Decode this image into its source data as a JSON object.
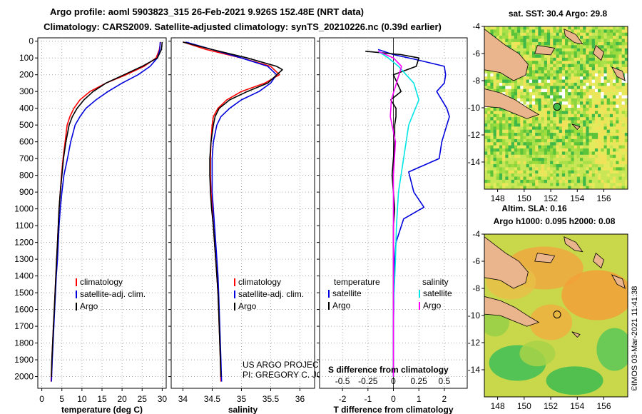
{
  "header": {
    "line1": "Argo profile: aoml 5903823_315 26-Feb-2021 9.926S 152.48E (NRT data)",
    "line2": "Climatology: CARS2009. Satellite-adjusted climatology: synTS_20210226.nc (0.39d earlier)"
  },
  "colors": {
    "climatology": "#ff0000",
    "satellite": "#0000dd",
    "argo": "#000000",
    "sat_salinity": "#00e5e5",
    "argo_salinity": "#ff00ff",
    "land": "#eab48c"
  },
  "chart_data": [
    {
      "type": "line",
      "id": "temperature",
      "xlabel": "temperature (deg C)",
      "xlim": [
        -1,
        31
      ],
      "ylim": [
        2070,
        -20
      ],
      "xticks": [
        0,
        5,
        10,
        15,
        20,
        25,
        30
      ],
      "xtick_labels": [
        "0",
        "5",
        "10",
        "15",
        "20",
        "25",
        "30"
      ],
      "yticks": [
        0,
        100,
        200,
        300,
        400,
        500,
        600,
        700,
        800,
        900,
        1000,
        1100,
        1200,
        1300,
        1400,
        1500,
        1600,
        1700,
        1800,
        1900,
        2000
      ],
      "ytick_labels": [
        "0",
        "100",
        "200",
        "300",
        "400",
        "500",
        "600",
        "700",
        "800",
        "900",
        "1000",
        "1100",
        "1200",
        "1300",
        "1400",
        "1500",
        "1600",
        "1700",
        "1800",
        "1900",
        "2000"
      ],
      "legend": [
        "climatology",
        "satellite-adj. clim.",
        "Argo"
      ],
      "legend_position": "lower-right",
      "series": [
        {
          "name": "climatology",
          "color": "#ff0000",
          "x": [
            29.6,
            29.3,
            28.5,
            25.5,
            21,
            16,
            12,
            9.5,
            8,
            7,
            6.3,
            5.8,
            5.3,
            4.9,
            4.6,
            4.3,
            4.1,
            3.9,
            3.7,
            3.5,
            3.3,
            3.1,
            2.9,
            2.7,
            2.5,
            2.3
          ],
          "y": [
            5,
            50,
            100,
            150,
            200,
            250,
            300,
            350,
            400,
            450,
            500,
            600,
            700,
            800,
            900,
            1000,
            1100,
            1200,
            1300,
            1400,
            1500,
            1600,
            1700,
            1800,
            1900,
            2030
          ]
        },
        {
          "name": "satellite-adj. clim.",
          "color": "#0000dd",
          "x": [
            29.5,
            29.4,
            28.8,
            27,
            24,
            20,
            16.5,
            13.5,
            11,
            9.5,
            8.3,
            7.2,
            6.4,
            5.5,
            5,
            4.6,
            4.3,
            4.1,
            3.9,
            3.6,
            3.4,
            3.2,
            3,
            2.8,
            2.6,
            2.4
          ],
          "y": [
            5,
            50,
            100,
            150,
            200,
            250,
            300,
            350,
            400,
            450,
            500,
            600,
            700,
            800,
            900,
            1000,
            1100,
            1200,
            1300,
            1400,
            1500,
            1600,
            1700,
            1800,
            1900,
            2030
          ]
        },
        {
          "name": "Argo",
          "color": "#000000",
          "x": [
            30,
            29.8,
            28.8,
            25,
            20.5,
            16,
            12.8,
            10.5,
            8.8,
            7.6,
            6.8,
            6,
            5.4,
            5,
            4.6,
            4.3,
            4.1,
            3.9,
            3.7,
            3.5,
            3.3,
            3.1,
            2.9,
            2.7,
            2.5,
            2.4
          ],
          "y": [
            5,
            50,
            100,
            150,
            200,
            250,
            300,
            350,
            400,
            450,
            500,
            600,
            700,
            800,
            900,
            1000,
            1100,
            1200,
            1300,
            1400,
            1500,
            1600,
            1700,
            1800,
            1900,
            2000
          ]
        }
      ]
    },
    {
      "type": "line",
      "id": "salinity",
      "xlabel": "salinity",
      "xlim": [
        33.8,
        36.25
      ],
      "ylim": [
        2070,
        -20
      ],
      "xticks": [
        34,
        34.5,
        35,
        35.5,
        36
      ],
      "xtick_labels": [
        "34",
        "34.5",
        "35",
        "35.5",
        "36"
      ],
      "legend": [
        "climatology",
        "satellite-adj. clim.",
        "Argo"
      ],
      "legend_position": "lower-right",
      "annotation": [
        "US ARGO PROJECT",
        "PI: GREGORY C. JOHNSON"
      ],
      "series": [
        {
          "name": "climatology",
          "color": "#ff0000",
          "x": [
            34.0,
            34.4,
            35.0,
            35.5,
            35.65,
            35.4,
            35.0,
            34.75,
            34.6,
            34.52,
            34.5,
            34.48,
            34.47,
            34.47,
            34.48,
            34.5,
            34.52,
            34.54,
            34.56,
            34.58,
            34.6,
            34.61,
            34.62,
            34.63,
            34.64,
            34.65
          ],
          "y": [
            5,
            50,
            100,
            150,
            200,
            250,
            300,
            350,
            400,
            450,
            500,
            600,
            700,
            800,
            900,
            1000,
            1100,
            1200,
            1300,
            1400,
            1500,
            1600,
            1700,
            1800,
            1900,
            2030
          ]
        },
        {
          "name": "satellite-adj. clim.",
          "color": "#0000dd",
          "x": [
            34.05,
            34.5,
            35.0,
            35.45,
            35.6,
            35.5,
            35.3,
            35.0,
            34.8,
            34.65,
            34.58,
            34.52,
            34.5,
            34.5,
            34.5,
            34.52,
            34.54,
            34.56,
            34.58,
            34.6,
            34.61,
            34.62,
            34.63,
            34.64,
            34.65,
            34.66
          ],
          "y": [
            5,
            50,
            100,
            150,
            200,
            250,
            300,
            350,
            400,
            450,
            500,
            600,
            700,
            800,
            900,
            1000,
            1100,
            1200,
            1300,
            1400,
            1500,
            1600,
            1700,
            1800,
            1900,
            2030
          ]
        },
        {
          "name": "Argo",
          "color": "#000000",
          "x": [
            34.0,
            34.5,
            35.1,
            35.6,
            35.7,
            35.45,
            35.1,
            34.8,
            34.62,
            34.55,
            34.52,
            34.48,
            34.46,
            34.46,
            34.47,
            34.49,
            34.52,
            34.54,
            34.56,
            34.58,
            34.6,
            34.61,
            34.62,
            34.63,
            34.64,
            34.65
          ],
          "y": [
            5,
            50,
            100,
            150,
            170,
            250,
            300,
            350,
            400,
            450,
            500,
            600,
            700,
            800,
            900,
            1000,
            1100,
            1200,
            1300,
            1400,
            1500,
            1600,
            1700,
            1800,
            1900,
            2000
          ]
        }
      ]
    },
    {
      "type": "line",
      "id": "difference",
      "xlabel": "T difference from climatology",
      "xlabel_top": "S difference from climatology",
      "xlim": [
        -2.9,
        2.9
      ],
      "ylim": [
        2070,
        -20
      ],
      "xticks": [
        -2,
        -1,
        0,
        1,
        2
      ],
      "xtick_labels": [
        "-2",
        "-1",
        "0",
        "1",
        "2"
      ],
      "xticks_salinity": [
        -0.5,
        -0.25,
        0,
        0.25,
        0.5
      ],
      "xtick_labels_salinity": [
        "-0.5",
        "-0.25",
        "0",
        "0.25",
        "0.5"
      ],
      "salinity_scale": 4,
      "legend_temperature_title": "temperature",
      "legend_salinity_title": "salinity",
      "legend_temperature": [
        "satellite",
        "Argo"
      ],
      "legend_salinity": [
        "satellite",
        "Argo"
      ],
      "series": [
        {
          "name": "temperature satellite",
          "color": "#0000dd",
          "x": [
            -0.6,
            0,
            0.9,
            2.0,
            2.05,
            2.0,
            1.7,
            1.9,
            2.1,
            2.2,
            2.1,
            1.9,
            1.8,
            0.6,
            0.8,
            1.2,
            0.4,
            0.1,
            0.05,
            0.05,
            0.02,
            0.01,
            0,
            0,
            0
          ],
          "y": [
            50,
            80,
            110,
            150,
            200,
            250,
            300,
            350,
            400,
            450,
            500,
            600,
            700,
            780,
            900,
            990,
            1060,
            1200,
            1300,
            1400,
            1500,
            1600,
            1700,
            1800,
            2000
          ]
        },
        {
          "name": "temperature Argo",
          "color": "#000000",
          "x": [
            -1.1,
            0.3,
            1.0,
            0.9,
            0.0,
            0.3,
            -0.1,
            0.1,
            0.1,
            0.05,
            0.05,
            0.0,
            -0.05,
            0.0,
            0.05,
            0.0,
            0.0,
            0.0,
            0.0,
            0.0,
            0.0,
            0.0
          ],
          "y": [
            60,
            80,
            100,
            150,
            200,
            300,
            350,
            400,
            450,
            500,
            600,
            700,
            800,
            900,
            1000,
            1100,
            1200,
            1300,
            1400,
            1500,
            1600,
            2000
          ]
        },
        {
          "name": "salinity satellite",
          "color": "#00e5e5",
          "x": [
            -0.15,
            -0.05,
            0.05,
            0.2,
            0.25,
            0.15,
            0.1,
            0.05,
            0.03,
            0.02,
            0.0,
            0.0
          ],
          "y": [
            60,
            100,
            150,
            250,
            350,
            500,
            700,
            900,
            1100,
            1300,
            1600,
            2000
          ]
        },
        {
          "name": "salinity Argo",
          "color": "#ff00ff",
          "x": [
            -0.15,
            0.0,
            0.08,
            0.03,
            -0.02,
            -0.03,
            0.02,
            0.0,
            0.0,
            0.0,
            0.0,
            0.0
          ],
          "y": [
            60,
            100,
            150,
            250,
            350,
            450,
            600,
            800,
            1000,
            1300,
            1600,
            2000
          ]
        }
      ]
    },
    {
      "type": "heatmap",
      "id": "sst-map",
      "title": "sat. SST: 30.4 Argo: 29.8",
      "xlim": [
        147,
        157.8
      ],
      "ylim": [
        -16,
        -4
      ],
      "xticks": [
        148,
        150,
        152,
        154,
        156
      ],
      "xtick_labels": [
        "148",
        "150",
        "152",
        "154",
        "156"
      ],
      "yticks": [
        -4,
        -6,
        -8,
        -10,
        -12,
        -14
      ],
      "ytick_labels": [
        "-4",
        "-6",
        "-8",
        "-10",
        "-12",
        "-14"
      ],
      "argo_position": {
        "lon": 152.48,
        "lat": -9.926
      }
    },
    {
      "type": "heatmap",
      "id": "sla-map",
      "title": "Altim. SLA: 0.16",
      "subtitle": "Argo h1000: 0.095 h2000: 0.08",
      "xlim": [
        147,
        157.8
      ],
      "ylim": [
        -16,
        -4
      ],
      "xticks": [
        148,
        150,
        152,
        154,
        156
      ],
      "xtick_labels": [
        "148",
        "150",
        "152",
        "154",
        "156"
      ],
      "yticks": [
        -4,
        -6,
        -8,
        -10,
        -12,
        -14
      ],
      "ytick_labels": [
        "-4",
        "-6",
        "-8",
        "-10",
        "-12",
        "-14"
      ],
      "argo_position": {
        "lon": 152.48,
        "lat": -9.926
      }
    }
  ],
  "footer": {
    "stamp": "©IMOS 03-Mar-2021 11:41:38"
  }
}
